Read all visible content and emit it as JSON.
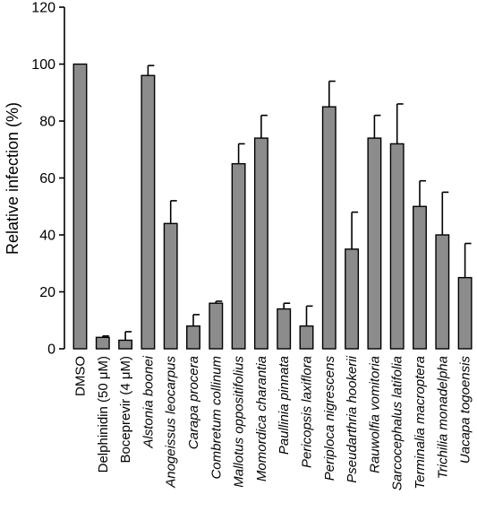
{
  "chart_data": {
    "type": "bar",
    "ylabel": "Relative infection (%)",
    "xlabel": "",
    "ylim": [
      0,
      120
    ],
    "yticks": [
      0,
      20,
      40,
      60,
      80,
      100,
      120
    ],
    "grid": false,
    "categories": [
      "DMSO",
      "Delphinidin (50 μM)",
      "Boceprevir (4 μM)",
      "Alstonia boonei",
      "Anogeissus leocarpus",
      "Carapa procera",
      "Combretum collinum",
      "Mallotus oppositifolius",
      "Momordica charantia",
      "Paullinia pinnata",
      "Pericopsis laxiflora",
      "Periploca nigrescens",
      "Pseudarthria hookerii",
      "Rauwolfia vomitoria",
      "Sarcocephalus latifolia",
      "Terminalia macroptera",
      "Trichilia monadelpha",
      "Uacapa togoensis"
    ],
    "italic": [
      false,
      false,
      false,
      true,
      true,
      true,
      true,
      true,
      true,
      true,
      true,
      true,
      true,
      true,
      true,
      true,
      true,
      true
    ],
    "values": [
      100,
      4,
      3,
      96,
      44,
      8,
      16,
      65,
      74,
      14,
      8,
      85,
      35,
      74,
      72,
      50,
      40,
      25
    ],
    "errors": [
      0,
      0.5,
      3,
      3.5,
      8,
      4,
      0.7,
      7,
      8,
      2,
      7,
      9,
      13,
      8,
      14,
      9,
      15,
      12
    ],
    "colors": {
      "bar": "#8c8c8c",
      "outline": "#000000"
    }
  }
}
